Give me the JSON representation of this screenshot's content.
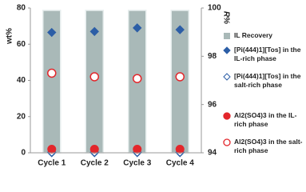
{
  "chart_data": {
    "type": "bar",
    "y_label": "wt%",
    "y2_label": "R%",
    "categories": [
      "Cycle 1",
      "Cycle 2",
      "Cycle 3",
      "Cycle 4"
    ],
    "ylim": [
      0,
      80
    ],
    "yticks": [
      0,
      20,
      40,
      60,
      80
    ],
    "y2lim": [
      94,
      100
    ],
    "y2ticks": [
      94,
      96,
      98,
      100
    ],
    "grid": false,
    "legend": "right",
    "series": [
      {
        "name": "IL Recovery",
        "type": "bar",
        "axis": "y2",
        "color": "#a9b9b8",
        "values": [
          99.9,
          99.9,
          99.9,
          99.9
        ]
      },
      {
        "name": "[Pi(444)1][Tos] in the IL-rich phase",
        "type": "scatter",
        "marker": "diamond",
        "filled": true,
        "color": "#2c5ea6",
        "values": [
          66.5,
          67,
          69,
          68
        ]
      },
      {
        "name": "[Pi(444)1][Tos] in the salt-rich phase",
        "type": "scatter",
        "marker": "diamond",
        "filled": false,
        "color": "#2c5ea6",
        "values": [
          0.2,
          0.2,
          0.2,
          0.2
        ]
      },
      {
        "name": "Al2(SO4)3 in the IL-rich phase",
        "type": "scatter",
        "marker": "circle",
        "filled": true,
        "color": "#e3262b",
        "values": [
          2,
          2,
          2,
          2
        ]
      },
      {
        "name": "Al2(SO4)3 in the salt-rich phase",
        "type": "scatter",
        "marker": "circle",
        "filled": false,
        "color": "#e3262b",
        "values": [
          44,
          42,
          41,
          42
        ]
      }
    ]
  }
}
